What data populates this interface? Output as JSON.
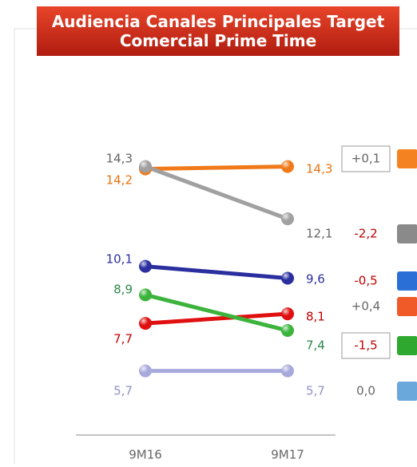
{
  "chart_data": {
    "type": "slope",
    "title": "Audiencia Canales Principales Target Comercial Prime Time",
    "categories": [
      "9M16",
      "9M17"
    ],
    "ylim": [
      3,
      16
    ],
    "series": [
      {
        "color": "#f07a1a",
        "label_color": "#e8730f",
        "values": [
          14.2,
          14.3
        ],
        "value_labels": [
          "14,2",
          "14,3"
        ],
        "change": 0.1,
        "change_label": "+0,1",
        "boxed": true,
        "icon_color": "#f58220"
      },
      {
        "color": "#a0a0a0",
        "label_color": "#666666",
        "values": [
          14.3,
          12.1
        ],
        "value_labels": [
          "14,3",
          "12,1"
        ],
        "change": -2.2,
        "change_label": "-2,2",
        "boxed": false,
        "icon_color": "#8a8a8a"
      },
      {
        "color": "#2a2e9e",
        "label_color": "#2a2e9e",
        "values": [
          10.1,
          9.6
        ],
        "value_labels": [
          "10,1",
          "9,6"
        ],
        "change": -0.5,
        "change_label": "-0,5",
        "boxed": false,
        "icon_color": "#2a6fd6"
      },
      {
        "color": "#e01010",
        "label_color": "#c00000",
        "values": [
          7.7,
          8.1
        ],
        "value_labels": [
          "7,7",
          "8,1"
        ],
        "change": 0.4,
        "change_label": "+0,4",
        "boxed": false,
        "icon_color": "#f05a28"
      },
      {
        "color": "#3cb43c",
        "label_color": "#2a8a4a",
        "values": [
          8.9,
          7.4
        ],
        "value_labels": [
          "8,9",
          "7,4"
        ],
        "change": -1.5,
        "change_label": "-1,5",
        "boxed": true,
        "icon_color": "#2fa82f"
      },
      {
        "color": "#a7a9dc",
        "label_color": "#8f92c8",
        "values": [
          5.7,
          5.7
        ],
        "value_labels": [
          "5,7",
          "5,7"
        ],
        "change": 0.0,
        "change_label": "0,0",
        "boxed": false,
        "icon_color": "#6aa8dc"
      }
    ]
  }
}
